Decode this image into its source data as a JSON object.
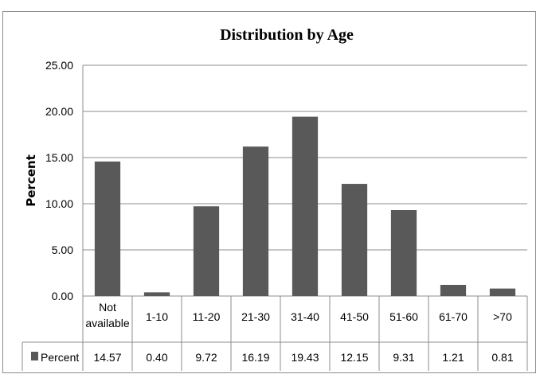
{
  "chart_data": {
    "type": "bar",
    "title": "Distribution by Age",
    "ylabel": "Percent",
    "xlabel": "",
    "ylim": [
      0,
      25
    ],
    "yticks": [
      "0.00",
      "5.00",
      "10.00",
      "15.00",
      "20.00",
      "25.00"
    ],
    "categories": [
      [
        "Not",
        "available"
      ],
      [
        "1-10"
      ],
      [
        "11-20"
      ],
      [
        "21-30"
      ],
      [
        "31-40"
      ],
      [
        "41-50"
      ],
      [
        "51-60"
      ],
      [
        "61-70"
      ],
      [
        ">70"
      ]
    ],
    "series": [
      {
        "name": "Percent",
        "values": [
          14.57,
          0.4,
          9.72,
          16.19,
          19.43,
          12.15,
          9.31,
          1.21,
          0.81
        ],
        "labels": [
          "14.57",
          "0.40",
          "9.72",
          "16.19",
          "19.43",
          "12.15",
          "9.31",
          "1.21",
          "0.81"
        ],
        "color": "#595959"
      }
    ],
    "grid": true,
    "data_table": true
  }
}
